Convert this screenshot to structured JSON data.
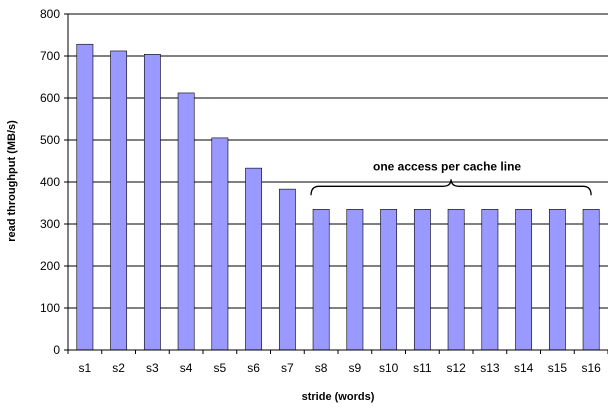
{
  "chart_data": {
    "type": "bar",
    "title": "",
    "xlabel": "stride (words)",
    "ylabel": "read throughput (MB/s)",
    "ylim": [
      0,
      800
    ],
    "yticks": [
      0,
      100,
      200,
      300,
      400,
      500,
      600,
      700,
      800
    ],
    "grid": true,
    "legend": "none",
    "bar_color": "#9999ff",
    "categories": [
      "s1",
      "s2",
      "s3",
      "s4",
      "s5",
      "s6",
      "s7",
      "s8",
      "s9",
      "s10",
      "s11",
      "s12",
      "s13",
      "s14",
      "s15",
      "s16"
    ],
    "values": [
      728,
      712,
      704,
      612,
      505,
      433,
      383,
      335,
      335,
      335,
      335,
      335,
      335,
      335,
      335,
      335
    ],
    "annotation": {
      "text": "one access per cache line",
      "span": [
        "s8",
        "s16"
      ]
    }
  }
}
